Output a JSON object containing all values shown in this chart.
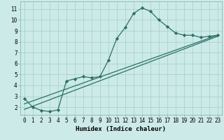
{
  "xlabel": "Humidex (Indice chaleur)",
  "background_color": "#cceae7",
  "grid_color": "#aad4d0",
  "line_color": "#2d7068",
  "xlim": [
    -0.5,
    23.5
  ],
  "ylim": [
    1.3,
    11.7
  ],
  "xticks": [
    0,
    1,
    2,
    3,
    4,
    5,
    6,
    7,
    8,
    9,
    10,
    11,
    12,
    13,
    14,
    15,
    16,
    17,
    18,
    19,
    20,
    21,
    22,
    23
  ],
  "yticks": [
    2,
    3,
    4,
    5,
    6,
    7,
    8,
    9,
    10,
    11
  ],
  "line1_x": [
    0,
    1,
    2,
    3,
    4,
    5,
    6,
    7,
    8,
    9,
    10,
    11,
    12,
    13,
    14,
    15,
    16,
    17,
    18,
    19,
    20,
    21,
    22,
    23
  ],
  "line1_y": [
    2.8,
    2.0,
    1.7,
    1.6,
    1.75,
    4.4,
    4.6,
    4.8,
    4.7,
    4.8,
    6.3,
    8.3,
    9.3,
    10.6,
    11.1,
    10.8,
    10.0,
    9.4,
    8.8,
    8.6,
    8.6,
    8.4,
    8.5,
    8.6
  ],
  "line2_x": [
    0,
    23
  ],
  "line2_y": [
    1.8,
    8.5
  ],
  "line3_x": [
    0,
    23
  ],
  "line3_y": [
    2.3,
    8.6
  ],
  "marker_style": "D",
  "marker_size": 2.2,
  "line_width": 0.9,
  "tick_fontsize": 5.5,
  "xlabel_fontsize": 6.5
}
